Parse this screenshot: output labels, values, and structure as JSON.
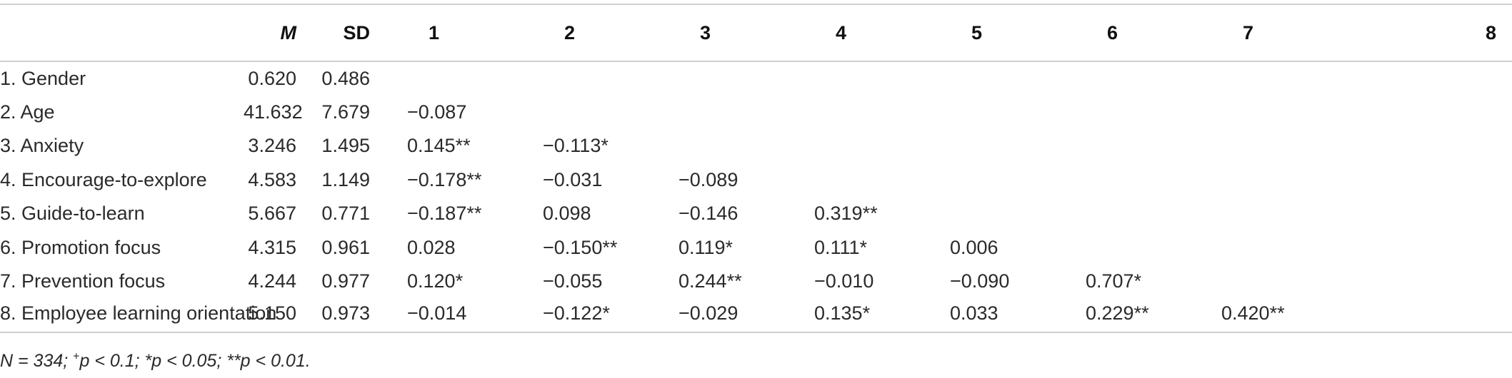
{
  "table": {
    "headers": [
      "",
      "M",
      "SD",
      "1",
      "2",
      "3",
      "4",
      "5",
      "6",
      "7",
      "8"
    ],
    "rows": [
      {
        "label": "1. Gender",
        "m": "0.620",
        "sd": "0.486",
        "c": [
          "",
          "",
          "",
          "",
          "",
          "",
          "",
          ""
        ]
      },
      {
        "label": "2. Age",
        "m": "41.632",
        "sd": "7.679",
        "c": [
          "−0.087",
          "",
          "",
          "",
          "",
          "",
          "",
          ""
        ]
      },
      {
        "label": "3. Anxiety",
        "m": "3.246",
        "sd": "1.495",
        "c": [
          "0.145**",
          "−0.113*",
          "",
          "",
          "",
          "",
          "",
          ""
        ]
      },
      {
        "label": "4. Encourage-to-explore",
        "m": "4.583",
        "sd": "1.149",
        "c": [
          "−0.178**",
          "−0.031",
          "−0.089",
          "",
          "",
          "",
          "",
          ""
        ]
      },
      {
        "label": "5. Guide-to-learn",
        "m": "5.667",
        "sd": "0.771",
        "c": [
          "−0.187**",
          "0.098",
          "−0.146",
          "0.319**",
          "",
          "",
          "",
          ""
        ]
      },
      {
        "label": "6. Promotion focus",
        "m": "4.315",
        "sd": "0.961",
        "c": [
          "0.028",
          "−0.150**",
          "0.119*",
          "0.111*",
          "0.006",
          "",
          "",
          ""
        ]
      },
      {
        "label": "7. Prevention focus",
        "m": "4.244",
        "sd": "0.977",
        "c": [
          "0.120*",
          "−0.055",
          "0.244**",
          "−0.010",
          "−0.090",
          "0.707*",
          "",
          ""
        ]
      },
      {
        "label": "8. Employee learning orientation",
        "m": "5.150",
        "sd": "0.973",
        "c": [
          "−0.014",
          "−0.122*",
          "−0.029",
          "0.135*",
          "0.033",
          "0.229**",
          "0.420**",
          ""
        ]
      }
    ]
  },
  "note": {
    "n": "N = 334; ",
    "plus": "+",
    "rest": "p < 0.1; *p < 0.05; **p < 0.01."
  }
}
